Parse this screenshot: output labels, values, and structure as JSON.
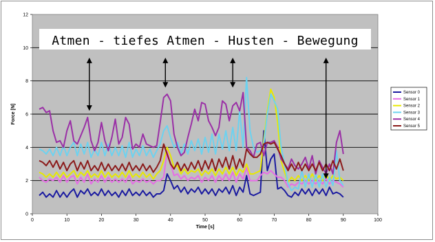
{
  "chart_data": {
    "type": "line",
    "title": "",
    "xlabel": "Time [s]",
    "ylabel": "Force [N]",
    "xlim": [
      0,
      100
    ],
    "ylim": [
      0,
      12
    ],
    "xticks": [
      0,
      10,
      20,
      30,
      40,
      50,
      60,
      70,
      80,
      90,
      100
    ],
    "yticks": [
      0,
      2,
      4,
      6,
      8,
      10,
      12
    ],
    "grid": "horizontal",
    "legend_position": "right",
    "plot_background": "#c0c0c0",
    "annotation": {
      "text": "Atmen - tiefes Atmen - Husten - Bewegung",
      "arrows_at_x": [
        16.5,
        38.5,
        58,
        85
      ]
    },
    "series": [
      {
        "name": "Sensor 0",
        "color": "#1a1aa0",
        "x": [
          2,
          3,
          4,
          5,
          6,
          7,
          8,
          9,
          10,
          11,
          12,
          13,
          14,
          15,
          16,
          17,
          18,
          19,
          20,
          21,
          22,
          23,
          24,
          25,
          26,
          27,
          28,
          29,
          30,
          31,
          32,
          33,
          34,
          35,
          36,
          37,
          38,
          39,
          40,
          41,
          42,
          43,
          44,
          45,
          46,
          47,
          48,
          49,
          50,
          51,
          52,
          53,
          54,
          55,
          56,
          57,
          58,
          59,
          60,
          61,
          62,
          63,
          64,
          65,
          66,
          67,
          68,
          69,
          70,
          71,
          72,
          73,
          74,
          75,
          76,
          77,
          78,
          79,
          80,
          81,
          82,
          83,
          84,
          85,
          86,
          87,
          88,
          89,
          90
        ],
        "values": [
          1.1,
          1.3,
          1.0,
          1.2,
          1.0,
          1.4,
          1.0,
          1.3,
          1.0,
          1.3,
          1.5,
          1.0,
          1.4,
          1.2,
          1.5,
          1.1,
          1.3,
          1.1,
          1.5,
          1.1,
          1.4,
          1.1,
          1.3,
          1.0,
          1.4,
          1.1,
          1.5,
          1.1,
          1.3,
          1.1,
          1.4,
          1.1,
          1.3,
          1.0,
          1.2,
          1.2,
          1.4,
          2.4,
          2.0,
          1.5,
          1.7,
          1.3,
          1.6,
          1.2,
          1.5,
          1.3,
          1.6,
          1.2,
          1.5,
          1.2,
          1.5,
          1.1,
          1.5,
          1.3,
          1.6,
          1.2,
          1.7,
          1.1,
          1.6,
          1.3,
          2.3,
          1.2,
          1.1,
          1.2,
          1.3,
          5.0,
          2.6,
          3.3,
          3.6,
          1.5,
          1.6,
          1.4,
          1.1,
          1.0,
          1.3,
          1.1,
          1.5,
          1.2,
          1.5,
          1.1,
          1.5,
          1.2,
          1.5,
          1.1,
          1.6,
          1.2,
          1.3,
          1.2,
          1.0
        ]
      },
      {
        "name": "Sensor 1",
        "color": "#e66ee6",
        "x": [
          2,
          3,
          4,
          5,
          6,
          7,
          8,
          9,
          10,
          11,
          12,
          13,
          14,
          15,
          16,
          17,
          18,
          19,
          20,
          21,
          22,
          23,
          24,
          25,
          26,
          27,
          28,
          29,
          30,
          31,
          32,
          33,
          34,
          35,
          36,
          37,
          38,
          39,
          40,
          41,
          42,
          43,
          44,
          45,
          46,
          47,
          48,
          49,
          50,
          51,
          52,
          53,
          54,
          55,
          56,
          57,
          58,
          59,
          60,
          61,
          62,
          63,
          64,
          65,
          66,
          67,
          68,
          69,
          70,
          71,
          72,
          73,
          74,
          75,
          76,
          77,
          78,
          79,
          80,
          81,
          82,
          83,
          84,
          85,
          86,
          87,
          88,
          89,
          90
        ],
        "values": [
          2.2,
          2.0,
          1.9,
          2.1,
          2.0,
          2.2,
          1.9,
          2.3,
          1.9,
          2.2,
          2.3,
          1.8,
          2.2,
          1.9,
          2.4,
          1.8,
          2.1,
          1.9,
          2.3,
          1.9,
          2.2,
          1.9,
          2.1,
          1.9,
          2.1,
          1.9,
          2.3,
          1.8,
          2.0,
          1.9,
          2.1,
          1.9,
          2.0,
          1.8,
          2.0,
          2.0,
          2.2,
          3.8,
          3.0,
          2.3,
          2.4,
          2.1,
          2.3,
          2.0,
          2.2,
          2.1,
          2.3,
          1.9,
          2.2,
          2.0,
          2.3,
          1.9,
          2.3,
          2.0,
          2.4,
          2.0,
          2.5,
          1.9,
          2.4,
          2.1,
          2.8,
          2.0,
          2.0,
          2.0,
          2.3,
          2.5,
          2.4,
          2.6,
          2.4,
          2.2,
          2.2,
          2.0,
          1.6,
          1.8,
          1.7,
          1.9,
          1.8,
          2.0,
          1.8,
          2.0,
          1.8,
          2.0,
          1.8,
          2.1,
          1.8,
          2.0,
          1.9,
          1.8,
          1.6
        ]
      },
      {
        "name": "Sensor 2",
        "color": "#e8e800",
        "x": [
          2,
          3,
          4,
          5,
          6,
          7,
          8,
          9,
          10,
          11,
          12,
          13,
          14,
          15,
          16,
          17,
          18,
          19,
          20,
          21,
          22,
          23,
          24,
          25,
          26,
          27,
          28,
          29,
          30,
          31,
          32,
          33,
          34,
          35,
          36,
          37,
          38,
          39,
          40,
          41,
          42,
          43,
          44,
          45,
          46,
          47,
          48,
          49,
          50,
          51,
          52,
          53,
          54,
          55,
          56,
          57,
          58,
          59,
          60,
          61,
          62,
          63,
          64,
          65,
          66,
          67,
          68,
          69,
          70,
          71,
          72,
          73,
          74,
          75,
          76,
          77,
          78,
          79,
          80,
          81,
          82,
          83,
          84,
          85,
          86,
          87,
          88,
          89,
          90
        ],
        "values": [
          2.5,
          2.4,
          2.2,
          2.4,
          2.2,
          2.5,
          2.2,
          2.5,
          2.2,
          2.4,
          2.6,
          2.2,
          2.5,
          2.3,
          2.6,
          2.2,
          2.4,
          2.2,
          2.6,
          2.2,
          2.5,
          2.2,
          2.4,
          2.2,
          2.5,
          2.2,
          2.6,
          2.2,
          2.4,
          2.2,
          2.5,
          2.2,
          2.4,
          2.1,
          2.4,
          2.6,
          3.2,
          4.0,
          3.5,
          2.8,
          2.9,
          2.4,
          2.7,
          2.4,
          2.6,
          2.5,
          2.7,
          2.3,
          2.6,
          2.4,
          2.7,
          2.3,
          2.7,
          2.4,
          2.8,
          2.4,
          2.8,
          2.3,
          2.7,
          2.5,
          3.0,
          2.4,
          2.4,
          2.5,
          2.6,
          4.5,
          6.2,
          7.5,
          7.0,
          5.5,
          3.2,
          2.5,
          1.9,
          2.2,
          2.0,
          2.3,
          2.0,
          2.3,
          2.0,
          2.4,
          2.0,
          2.3,
          2.0,
          2.4,
          2.0,
          2.3,
          2.1,
          2.2,
          2.0
        ]
      },
      {
        "name": "Sensor 3",
        "color": "#6cd2f0",
        "x": [
          2,
          3,
          4,
          5,
          6,
          7,
          8,
          9,
          10,
          11,
          12,
          13,
          14,
          15,
          16,
          17,
          18,
          19,
          20,
          21,
          22,
          23,
          24,
          25,
          26,
          27,
          28,
          29,
          30,
          31,
          32,
          33,
          34,
          35,
          36,
          37,
          38,
          39,
          40,
          41,
          42,
          43,
          44,
          45,
          46,
          47,
          48,
          49,
          50,
          51,
          52,
          53,
          54,
          55,
          56,
          57,
          58,
          59,
          60,
          61,
          62,
          63,
          64,
          65,
          66,
          67,
          68,
          69,
          70,
          71,
          72,
          73,
          74,
          75,
          76,
          77,
          78,
          79,
          80,
          81,
          82,
          83,
          84,
          85,
          86,
          87,
          88,
          89,
          90
        ],
        "values": [
          3.9,
          3.8,
          3.6,
          3.9,
          3.5,
          4.0,
          3.5,
          4.1,
          3.5,
          4.0,
          4.3,
          3.5,
          4.2,
          3.6,
          4.3,
          3.4,
          3.9,
          3.5,
          4.3,
          3.5,
          4.2,
          3.5,
          4.0,
          3.5,
          4.1,
          3.4,
          4.3,
          3.4,
          3.9,
          3.5,
          4.1,
          3.5,
          3.9,
          3.4,
          3.8,
          4.2,
          5.0,
          5.3,
          4.6,
          4.0,
          4.3,
          3.6,
          4.2,
          3.6,
          4.4,
          3.8,
          4.5,
          3.6,
          4.6,
          3.7,
          4.8,
          3.6,
          4.8,
          3.9,
          5.0,
          3.8,
          5.2,
          3.8,
          6.2,
          4.0,
          8.2,
          5.0,
          4.0,
          3.7,
          3.8,
          4.2,
          6.0,
          7.2,
          6.8,
          6.3,
          4.0,
          3.0,
          1.8,
          1.4,
          1.6,
          1.5,
          2.6,
          1.6,
          2.4,
          1.6,
          2.4,
          1.6,
          2.4,
          1.6,
          2.2,
          1.7,
          3.8,
          2.0,
          1.7
        ]
      },
      {
        "name": "Sensor 4",
        "color": "#9a2fa6",
        "x": [
          2,
          3,
          4,
          5,
          6,
          7,
          8,
          9,
          10,
          11,
          12,
          13,
          14,
          15,
          16,
          17,
          18,
          19,
          20,
          21,
          22,
          23,
          24,
          25,
          26,
          27,
          28,
          29,
          30,
          31,
          32,
          33,
          34,
          35,
          36,
          37,
          38,
          39,
          40,
          41,
          42,
          43,
          44,
          45,
          46,
          47,
          48,
          49,
          50,
          51,
          52,
          53,
          54,
          55,
          56,
          57,
          58,
          59,
          60,
          61,
          62,
          63,
          64,
          65,
          66,
          67,
          68,
          69,
          70,
          71,
          72,
          73,
          74,
          75,
          76,
          77,
          78,
          79,
          80,
          81,
          82,
          83,
          84,
          85,
          86,
          87,
          88,
          89,
          90
        ],
        "values": [
          6.3,
          6.4,
          6.1,
          6.2,
          5.0,
          4.3,
          4.4,
          4.0,
          5.0,
          5.6,
          4.4,
          4.2,
          4.7,
          5.2,
          5.8,
          4.4,
          3.8,
          4.3,
          5.5,
          4.4,
          3.8,
          4.6,
          5.7,
          4.2,
          4.6,
          5.8,
          5.4,
          3.9,
          4.2,
          4.0,
          4.8,
          4.2,
          4.1,
          4.0,
          4.1,
          5.5,
          7.0,
          7.2,
          6.8,
          4.8,
          4.0,
          3.5,
          3.7,
          4.6,
          5.4,
          6.3,
          5.6,
          6.7,
          6.6,
          5.6,
          5.2,
          4.7,
          5.2,
          6.8,
          6.6,
          5.6,
          6.5,
          6.7,
          6.2,
          7.3,
          4.0,
          3.8,
          3.4,
          4.2,
          4.3,
          3.5,
          4.3,
          4.3,
          4.4,
          4.0,
          3.3,
          3.0,
          2.7,
          3.3,
          2.9,
          2.7,
          3.0,
          3.4,
          2.7,
          3.5,
          2.4,
          3.2,
          2.8,
          2.4,
          3.0,
          2.4,
          4.3,
          5.0,
          3.6
        ]
      },
      {
        "name": "Sensor 5",
        "color": "#8b1a1a",
        "x": [
          2,
          3,
          4,
          5,
          6,
          7,
          8,
          9,
          10,
          11,
          12,
          13,
          14,
          15,
          16,
          17,
          18,
          19,
          20,
          21,
          22,
          23,
          24,
          25,
          26,
          27,
          28,
          29,
          30,
          31,
          32,
          33,
          34,
          35,
          36,
          37,
          38,
          39,
          40,
          41,
          42,
          43,
          44,
          45,
          46,
          47,
          48,
          49,
          50,
          51,
          52,
          53,
          54,
          55,
          56,
          57,
          58,
          59,
          60,
          61,
          62,
          63,
          64,
          65,
          66,
          67,
          68,
          69,
          70,
          71,
          72,
          73,
          74,
          75,
          76,
          77,
          78,
          79,
          80,
          81,
          82,
          83,
          84,
          85,
          86,
          87,
          88,
          89,
          90
        ],
        "values": [
          3.2,
          3.1,
          2.9,
          3.2,
          2.8,
          3.2,
          2.7,
          3.1,
          2.6,
          3.0,
          3.2,
          2.6,
          3.1,
          2.7,
          3.2,
          2.6,
          2.9,
          2.6,
          3.1,
          2.6,
          3.0,
          2.6,
          2.9,
          2.6,
          3.0,
          2.6,
          3.1,
          2.6,
          2.9,
          2.6,
          3.0,
          2.6,
          2.9,
          2.5,
          2.8,
          3.2,
          4.2,
          3.6,
          3.0,
          2.7,
          3.1,
          2.6,
          3.0,
          2.6,
          3.1,
          2.7,
          3.2,
          2.6,
          3.2,
          2.7,
          3.3,
          2.6,
          3.3,
          2.8,
          3.4,
          2.7,
          3.5,
          2.7,
          3.3,
          2.8,
          3.9,
          3.6,
          3.4,
          3.4,
          3.6,
          4.2,
          4.3,
          4.2,
          4.3,
          3.9,
          3.5,
          3.0,
          2.6,
          3.0,
          2.6,
          3.1,
          2.6,
          3.0,
          2.6,
          3.0,
          2.6,
          3.1,
          2.6,
          3.0,
          2.6,
          3.2,
          2.7,
          3.3,
          2.6
        ]
      }
    ]
  }
}
